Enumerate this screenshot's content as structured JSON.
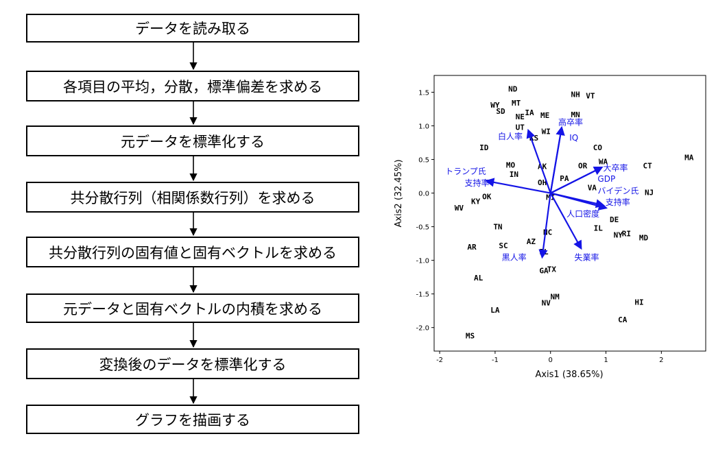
{
  "flowchart": {
    "steps": [
      "データを読み取る",
      "各項目の平均，分散，標準偏差を求める",
      "元データを標準化する",
      "共分散行列（相関係数行列）を求める",
      "共分散行列の固有値と固有ベクトルを求める",
      "元データと固有ベクトルの内積を求める",
      "変換後のデータを標準化する",
      "グラフを描画する"
    ]
  },
  "chart_data": {
    "type": "scatter",
    "title": "",
    "xlabel": "Axis1 (38.65%)",
    "ylabel": "Axis2 (32.45%)",
    "xlim": [
      -2.1,
      2.8
    ],
    "ylim": [
      -2.35,
      1.75
    ],
    "xticks": [
      "-2",
      "-1",
      "0",
      "1",
      "2"
    ],
    "yticks": [
      "1.5",
      "1.0",
      "0.5",
      "0.0",
      "-0.5",
      "-1.0",
      "-1.5",
      "-2.0"
    ],
    "grid": false,
    "points": [
      {
        "label": "ND",
        "x": -0.68,
        "y": 1.55
      },
      {
        "label": "NH",
        "x": 0.45,
        "y": 1.47
      },
      {
        "label": "VT",
        "x": 0.72,
        "y": 1.45
      },
      {
        "label": "MT",
        "x": -0.62,
        "y": 1.34
      },
      {
        "label": "WY",
        "x": -1.0,
        "y": 1.31
      },
      {
        "label": "IA",
        "x": -0.38,
        "y": 1.2
      },
      {
        "label": "SD",
        "x": -0.9,
        "y": 1.22
      },
      {
        "label": "NE",
        "x": -0.55,
        "y": 1.14
      },
      {
        "label": "ME",
        "x": -0.1,
        "y": 1.16
      },
      {
        "label": "MN",
        "x": 0.45,
        "y": 1.17
      },
      {
        "label": "UT",
        "x": -0.55,
        "y": 0.98
      },
      {
        "label": "WI",
        "x": -0.08,
        "y": 0.92
      },
      {
        "label": "KS",
        "x": -0.3,
        "y": 0.82
      },
      {
        "label": "ID",
        "x": -1.2,
        "y": 0.68
      },
      {
        "label": "CO",
        "x": 0.85,
        "y": 0.68
      },
      {
        "label": "MA",
        "x": 2.5,
        "y": 0.53
      },
      {
        "label": "WA",
        "x": 0.95,
        "y": 0.47
      },
      {
        "label": "CT",
        "x": 1.75,
        "y": 0.41
      },
      {
        "label": "MO",
        "x": -0.72,
        "y": 0.42
      },
      {
        "label": "OR",
        "x": 0.58,
        "y": 0.41
      },
      {
        "label": "AK",
        "x": -0.15,
        "y": 0.4
      },
      {
        "label": "IN",
        "x": -0.66,
        "y": 0.28
      },
      {
        "label": "PA",
        "x": 0.25,
        "y": 0.22
      },
      {
        "label": "OH",
        "x": -0.15,
        "y": 0.16
      },
      {
        "label": "VA",
        "x": 0.75,
        "y": 0.08
      },
      {
        "label": "NJ",
        "x": 1.78,
        "y": 0.01
      },
      {
        "label": "MI",
        "x": 0.0,
        "y": -0.06
      },
      {
        "label": "OK",
        "x": -1.15,
        "y": -0.05
      },
      {
        "label": "KY",
        "x": -1.35,
        "y": -0.12
      },
      {
        "label": "WV",
        "x": -1.65,
        "y": -0.22
      },
      {
        "label": "DE",
        "x": 1.15,
        "y": -0.39
      },
      {
        "label": "TN",
        "x": -0.95,
        "y": -0.5
      },
      {
        "label": "IL",
        "x": 0.86,
        "y": -0.52
      },
      {
        "label": "NC",
        "x": -0.05,
        "y": -0.58
      },
      {
        "label": "RI",
        "x": 1.37,
        "y": -0.6
      },
      {
        "label": "NY",
        "x": 1.22,
        "y": -0.62
      },
      {
        "label": "MD",
        "x": 1.68,
        "y": -0.66
      },
      {
        "label": "AZ",
        "x": -0.35,
        "y": -0.72
      },
      {
        "label": "AR",
        "x": -1.42,
        "y": -0.8
      },
      {
        "label": "SC",
        "x": -0.85,
        "y": -0.78
      },
      {
        "label": "FL",
        "x": -0.12,
        "y": -0.87
      },
      {
        "label": "TX",
        "x": 0.02,
        "y": -1.13
      },
      {
        "label": "GA",
        "x": -0.12,
        "y": -1.15
      },
      {
        "label": "AL",
        "x": -1.3,
        "y": -1.26
      },
      {
        "label": "NM",
        "x": 0.08,
        "y": -1.54
      },
      {
        "label": "HI",
        "x": 1.6,
        "y": -1.62
      },
      {
        "label": "NV",
        "x": -0.08,
        "y": -1.63
      },
      {
        "label": "LA",
        "x": -1.0,
        "y": -1.74
      },
      {
        "label": "CA",
        "x": 1.3,
        "y": -1.88
      },
      {
        "label": "MS",
        "x": -1.45,
        "y": -2.12
      }
    ],
    "vectors": [
      {
        "label": "高卒率",
        "x": 0.2,
        "y": 0.97
      },
      {
        "label": "IQ",
        "x": 0.2,
        "y": 0.97
      },
      {
        "label": "白人率",
        "x": -0.4,
        "y": 0.93
      },
      {
        "label": "トランプ氏支持率",
        "x": -1.15,
        "y": 0.18
      },
      {
        "label": "大卒率",
        "x": 0.92,
        "y": 0.38
      },
      {
        "label": "GDP",
        "x": 0.92,
        "y": 0.38
      },
      {
        "label": "バイデン氏支持率",
        "x": 0.95,
        "y": -0.18
      },
      {
        "label": "人口密度",
        "x": 1.0,
        "y": -0.22
      },
      {
        "label": "失業率",
        "x": 0.55,
        "y": -0.82
      },
      {
        "label": "黒人率",
        "x": -0.15,
        "y": -0.95
      }
    ],
    "vector_labels": [
      {
        "text": "高卒率",
        "x": 0.14,
        "y": 1.01
      },
      {
        "text": "IQ",
        "x": 0.34,
        "y": 0.78
      },
      {
        "text": "白人率",
        "x": -0.95,
        "y": 0.8
      },
      {
        "text": "トランプ氏",
        "x": -1.9,
        "y": 0.28
      },
      {
        "text": "支持率",
        "x": -1.55,
        "y": 0.11
      },
      {
        "text": "大卒率",
        "x": 0.95,
        "y": 0.33
      },
      {
        "text": "GDP",
        "x": 0.85,
        "y": 0.17
      },
      {
        "text": "バイデン氏",
        "x": 0.85,
        "y": -0.01
      },
      {
        "text": "支持率",
        "x": 0.99,
        "y": -0.18
      },
      {
        "text": "人口密度",
        "x": 0.29,
        "y": -0.35
      },
      {
        "text": "失業率",
        "x": 0.43,
        "y": -1.0
      },
      {
        "text": "黒人率",
        "x": -0.88,
        "y": -1.0
      }
    ],
    "vector_color": "#1414e6"
  }
}
